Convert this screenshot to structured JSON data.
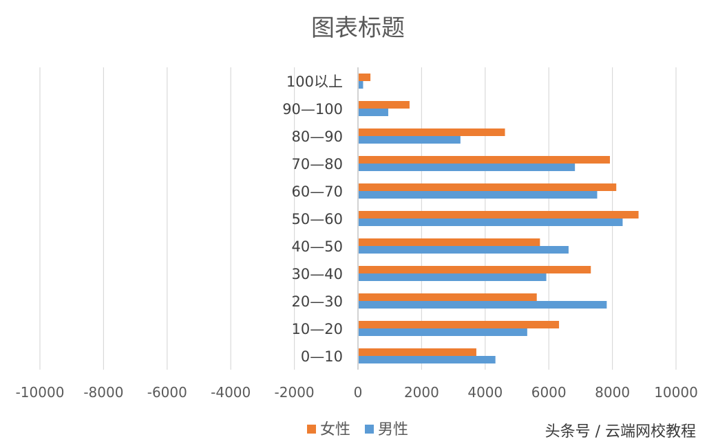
{
  "watermark": "头条号 / 云端网校教程",
  "chart_data": {
    "type": "bar",
    "orientation": "horizontal",
    "title": "图表标题",
    "xlim": [
      -10000,
      10000
    ],
    "x_ticks": [
      "-10000",
      "-8000",
      "-6000",
      "-4000",
      "-2000",
      "0",
      "2000",
      "4000",
      "6000",
      "8000",
      "10000"
    ],
    "grid": true,
    "legend_position": "bottom",
    "categories": [
      "0—10",
      "10—20",
      "20—30",
      "30—40",
      "40—50",
      "50—60",
      "60—70",
      "70—80",
      "80—90",
      "90—100",
      "100以上"
    ],
    "series": [
      {
        "name": "女性",
        "color": "#ED7D31",
        "values": [
          3700,
          6300,
          5600,
          7300,
          5700,
          8800,
          8100,
          7900,
          4600,
          1600,
          370
        ]
      },
      {
        "name": "男性",
        "color": "#5B9BD5",
        "values": [
          4300,
          5300,
          7800,
          5900,
          6600,
          8300,
          7500,
          6800,
          3200,
          930,
          140
        ]
      }
    ]
  }
}
